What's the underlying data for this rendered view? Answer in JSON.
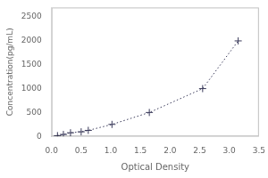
{
  "chart_data": {
    "type": "line",
    "xlabel": "Optical Density",
    "ylabel": "Concentration(pg/mL)",
    "x": [
      0.1,
      0.2,
      0.32,
      0.5,
      0.62,
      1.02,
      1.65,
      2.55,
      3.15
    ],
    "values": [
      15,
      40,
      75,
      95,
      125,
      250,
      500,
      1000,
      2000
    ],
    "xlim": [
      0,
      3.5
    ],
    "ylim": [
      0,
      2700
    ],
    "xticks": [
      {
        "value": 0,
        "label": "0.0"
      },
      0.5,
      {
        "value": 1,
        "label": "1.0"
      },
      1.5,
      {
        "value": 2,
        "label": "2.0"
      },
      2.5,
      {
        "value": 3,
        "label": "3.0"
      },
      3.5
    ],
    "yticks": [
      0,
      500,
      1000,
      1500,
      2000,
      2500
    ],
    "color": "#3a3a5a",
    "marker": "plus",
    "line_style": "dotted",
    "grid": false
  }
}
